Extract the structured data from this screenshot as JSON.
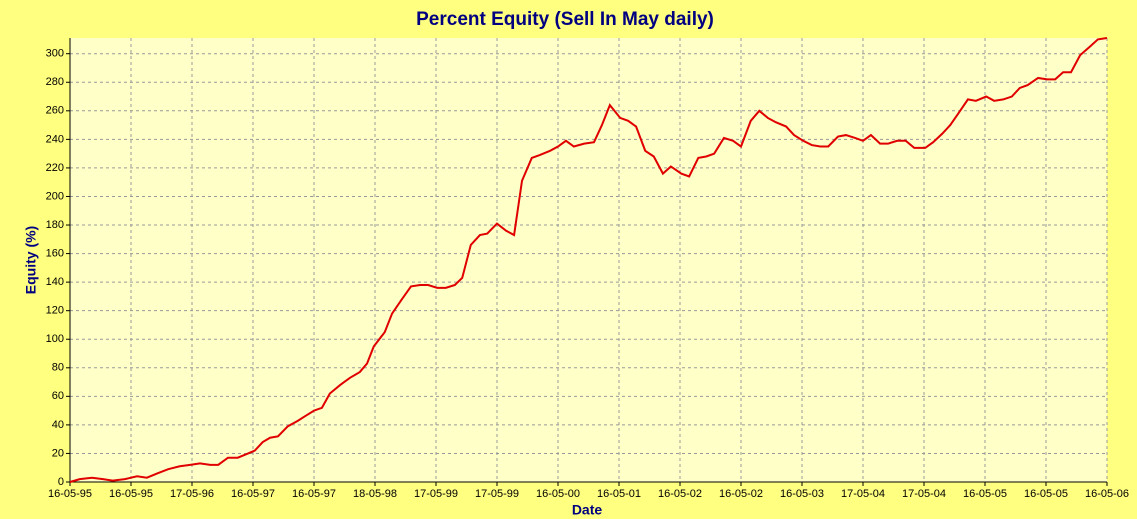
{
  "chart_data": {
    "type": "line",
    "title": "Percent Equity (Sell In May daily)",
    "x_label": "Date",
    "y_label": "Equity (%)",
    "grid": true,
    "xlim": [
      0,
      17
    ],
    "ylim": [
      0,
      311
    ],
    "yticks": [
      0,
      20,
      40,
      60,
      80,
      100,
      120,
      140,
      160,
      180,
      200,
      220,
      240,
      260,
      280,
      300
    ],
    "xticks": [
      {
        "value": 0,
        "label": "16-05-95"
      },
      {
        "value": 1,
        "label": "16-05-95"
      },
      {
        "value": 2,
        "label": "17-05-96"
      },
      {
        "value": 3,
        "label": "16-05-97"
      },
      {
        "value": 4,
        "label": "16-05-97"
      },
      {
        "value": 5,
        "label": "18-05-98"
      },
      {
        "value": 6,
        "label": "17-05-99"
      },
      {
        "value": 7,
        "label": "17-05-99"
      },
      {
        "value": 8,
        "label": "16-05-00"
      },
      {
        "value": 9,
        "label": "16-05-01"
      },
      {
        "value": 10,
        "label": "16-05-02"
      },
      {
        "value": 11,
        "label": "16-05-02"
      },
      {
        "value": 12,
        "label": "16-05-03"
      },
      {
        "value": 13,
        "label": "17-05-04"
      },
      {
        "value": 14,
        "label": "17-05-04"
      },
      {
        "value": 15,
        "label": "16-05-05"
      },
      {
        "value": 16,
        "label": "16-05-05"
      },
      {
        "value": 17,
        "label": "16-05-06"
      }
    ],
    "x": [
      0,
      0.16,
      0.36,
      0.54,
      0.7,
      0.9,
      1.1,
      1.26,
      1.43,
      1.61,
      1.8,
      1.97,
      2.13,
      2.3,
      2.43,
      2.59,
      2.75,
      2.92,
      3.03,
      3.16,
      3.28,
      3.41,
      3.57,
      3.74,
      3.85,
      4,
      4.13,
      4.26,
      4.43,
      4.59,
      4.75,
      4.87,
      4.98,
      5.16,
      5.28,
      5.44,
      5.59,
      5.74,
      5.87,
      6.02,
      6.16,
      6.31,
      6.43,
      6.57,
      6.72,
      6.84,
      7,
      7.15,
      7.28,
      7.41,
      7.57,
      7.7,
      7.87,
      8,
      8.13,
      8.26,
      8.43,
      8.59,
      8.72,
      8.85,
      9.02,
      9.15,
      9.28,
      9.43,
      9.57,
      9.72,
      9.85,
      10.02,
      10.15,
      10.3,
      10.43,
      10.56,
      10.72,
      10.87,
      11,
      11.16,
      11.3,
      11.44,
      11.57,
      11.74,
      11.87,
      12.02,
      12.16,
      12.3,
      12.43,
      12.59,
      12.72,
      12.87,
      13,
      13.13,
      13.28,
      13.41,
      13.56,
      13.7,
      13.84,
      14.02,
      14.15,
      14.3,
      14.43,
      14.56,
      14.72,
      14.85,
      15.02,
      15.15,
      15.3,
      15.44,
      15.57,
      15.7,
      15.87,
      16.02,
      16.15,
      16.28,
      16.41,
      16.56,
      16.72,
      16.85,
      17
    ],
    "series": [
      {
        "name": "Equity",
        "color": "#e00000",
        "values": [
          0,
          2,
          3,
          2,
          1,
          2,
          4,
          3,
          6,
          9,
          11,
          12,
          13,
          12,
          12,
          17,
          17,
          20,
          22,
          28,
          31,
          32,
          39,
          43,
          46,
          50,
          52,
          62,
          68,
          73,
          77,
          83,
          95,
          105,
          118,
          128,
          137,
          138,
          138,
          136,
          136,
          138,
          143,
          166,
          173,
          174,
          181,
          176,
          173,
          211,
          227,
          229,
          232,
          235,
          239,
          235,
          237,
          238,
          250,
          264,
          255,
          253,
          249,
          232,
          228,
          216,
          221,
          216,
          214,
          227,
          228,
          230,
          241,
          239,
          235,
          253,
          260,
          255,
          252,
          249,
          243,
          239,
          236,
          235,
          235,
          242,
          243,
          241,
          239,
          243,
          237,
          237,
          239,
          239,
          234,
          234,
          238,
          244,
          250,
          258,
          268,
          267,
          270,
          267,
          268,
          270,
          276,
          278,
          283,
          282,
          282,
          287,
          287,
          299,
          305,
          310,
          311
        ]
      }
    ]
  }
}
